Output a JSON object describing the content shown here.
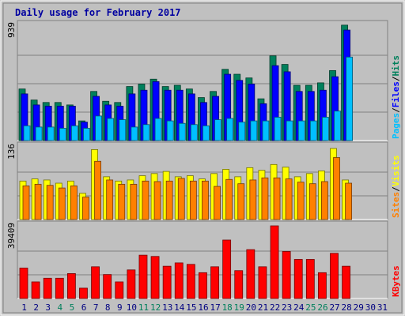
{
  "chart_data": [
    {
      "type": "bar",
      "title": "Daily usage for February 2017",
      "panel": "hits-files-pages",
      "ymax_label": "939",
      "ylim": [
        0,
        939
      ],
      "categories": [
        "1",
        "2",
        "3",
        "4",
        "5",
        "6",
        "7",
        "8",
        "9",
        "10",
        "11",
        "12",
        "13",
        "14",
        "15",
        "16",
        "17",
        "18",
        "19",
        "20",
        "21",
        "22",
        "23",
        "24",
        "25",
        "26",
        "27",
        "28",
        "29",
        "30",
        "31"
      ],
      "series": [
        {
          "name": "Hits",
          "values": [
            420,
            330,
            310,
            310,
            290,
            160,
            400,
            320,
            310,
            440,
            460,
            500,
            440,
            450,
            420,
            350,
            400,
            580,
            540,
            510,
            340,
            690,
            620,
            450,
            450,
            470,
            570,
            940,
            null,
            null,
            null
          ]
        },
        {
          "name": "Files",
          "values": [
            380,
            290,
            280,
            280,
            280,
            150,
            360,
            290,
            280,
            380,
            410,
            480,
            410,
            410,
            380,
            310,
            360,
            540,
            490,
            460,
            300,
            610,
            560,
            400,
            400,
            410,
            520,
            900,
            null,
            null,
            null
          ]
        },
        {
          "name": "Pages",
          "values": [
            120,
            110,
            110,
            100,
            120,
            100,
            200,
            180,
            170,
            110,
            130,
            180,
            160,
            140,
            130,
            120,
            170,
            180,
            150,
            160,
            160,
            190,
            160,
            160,
            160,
            190,
            240,
            680,
            null,
            null,
            null
          ]
        }
      ]
    },
    {
      "type": "bar",
      "panel": "visits-sites",
      "ymax_label": "136",
      "ylim": [
        0,
        136
      ],
      "categories": [
        "1",
        "2",
        "3",
        "4",
        "5",
        "6",
        "7",
        "8",
        "9",
        "10",
        "11",
        "12",
        "13",
        "14",
        "15",
        "16",
        "17",
        "18",
        "19",
        "20",
        "21",
        "22",
        "23",
        "24",
        "25",
        "26",
        "27",
        "28",
        "29",
        "30",
        "31"
      ],
      "series": [
        {
          "name": "Visits",
          "values": [
            72,
            76,
            74,
            68,
            72,
            49,
            131,
            80,
            72,
            74,
            82,
            86,
            90,
            80,
            82,
            76,
            86,
            94,
            80,
            97,
            92,
            103,
            98,
            80,
            86,
            91,
            133,
            74,
            null,
            null,
            null
          ]
        },
        {
          "name": "Sites",
          "values": [
            63,
            66,
            64,
            59,
            63,
            42,
            109,
            74,
            66,
            66,
            72,
            71,
            72,
            77,
            72,
            72,
            62,
            75,
            67,
            74,
            78,
            78,
            76,
            70,
            67,
            71,
            116,
            68,
            null,
            null,
            null
          ]
        }
      ]
    },
    {
      "type": "bar",
      "panel": "kbytes",
      "ymax_label": "39409",
      "ylim": [
        0,
        39409
      ],
      "categories": [
        "1",
        "2",
        "3",
        "4",
        "5",
        "6",
        "7",
        "8",
        "9",
        "10",
        "11",
        "12",
        "13",
        "14",
        "15",
        "16",
        "17",
        "18",
        "19",
        "20",
        "21",
        "22",
        "23",
        "24",
        "25",
        "26",
        "27",
        "28",
        "29",
        "30",
        "31"
      ],
      "series": [
        {
          "name": "KBytes",
          "values": [
            16500,
            9000,
            11000,
            11000,
            13500,
            5600,
            17200,
            13000,
            9000,
            15500,
            23500,
            22800,
            17500,
            19300,
            18500,
            14000,
            17200,
            31700,
            15100,
            26500,
            17200,
            39400,
            25500,
            21200,
            21200,
            14000,
            24500,
            17500,
            null,
            null,
            null
          ]
        }
      ]
    }
  ],
  "colors": {
    "hits": "#00805c",
    "files": "#0000ff",
    "pages": "#00c0ff",
    "visits": "#ffff00",
    "sites": "#ff8000",
    "kbytes": "#ff0000",
    "panel_bg": "#c0c0c0",
    "weekend_day": "#00805c",
    "weekday_day": "#000080"
  },
  "weekend_days": [
    4,
    5,
    11,
    12,
    18,
    19,
    25,
    26
  ],
  "legend": {
    "panel1": [
      {
        "label": "Pages",
        "color": "#00c0ff"
      },
      {
        "label": "/",
        "color": "#000000"
      },
      {
        "label": "Files",
        "color": "#0000ff"
      },
      {
        "label": "/",
        "color": "#000000"
      },
      {
        "label": "Hits",
        "color": "#00805c"
      }
    ],
    "panel2": [
      {
        "label": "Sites",
        "color": "#ff8000"
      },
      {
        "label": "/",
        "color": "#000000"
      },
      {
        "label": "Visits",
        "color": "#ffff00"
      }
    ],
    "panel3": [
      {
        "label": "KBytes",
        "color": "#ff0000"
      }
    ]
  }
}
